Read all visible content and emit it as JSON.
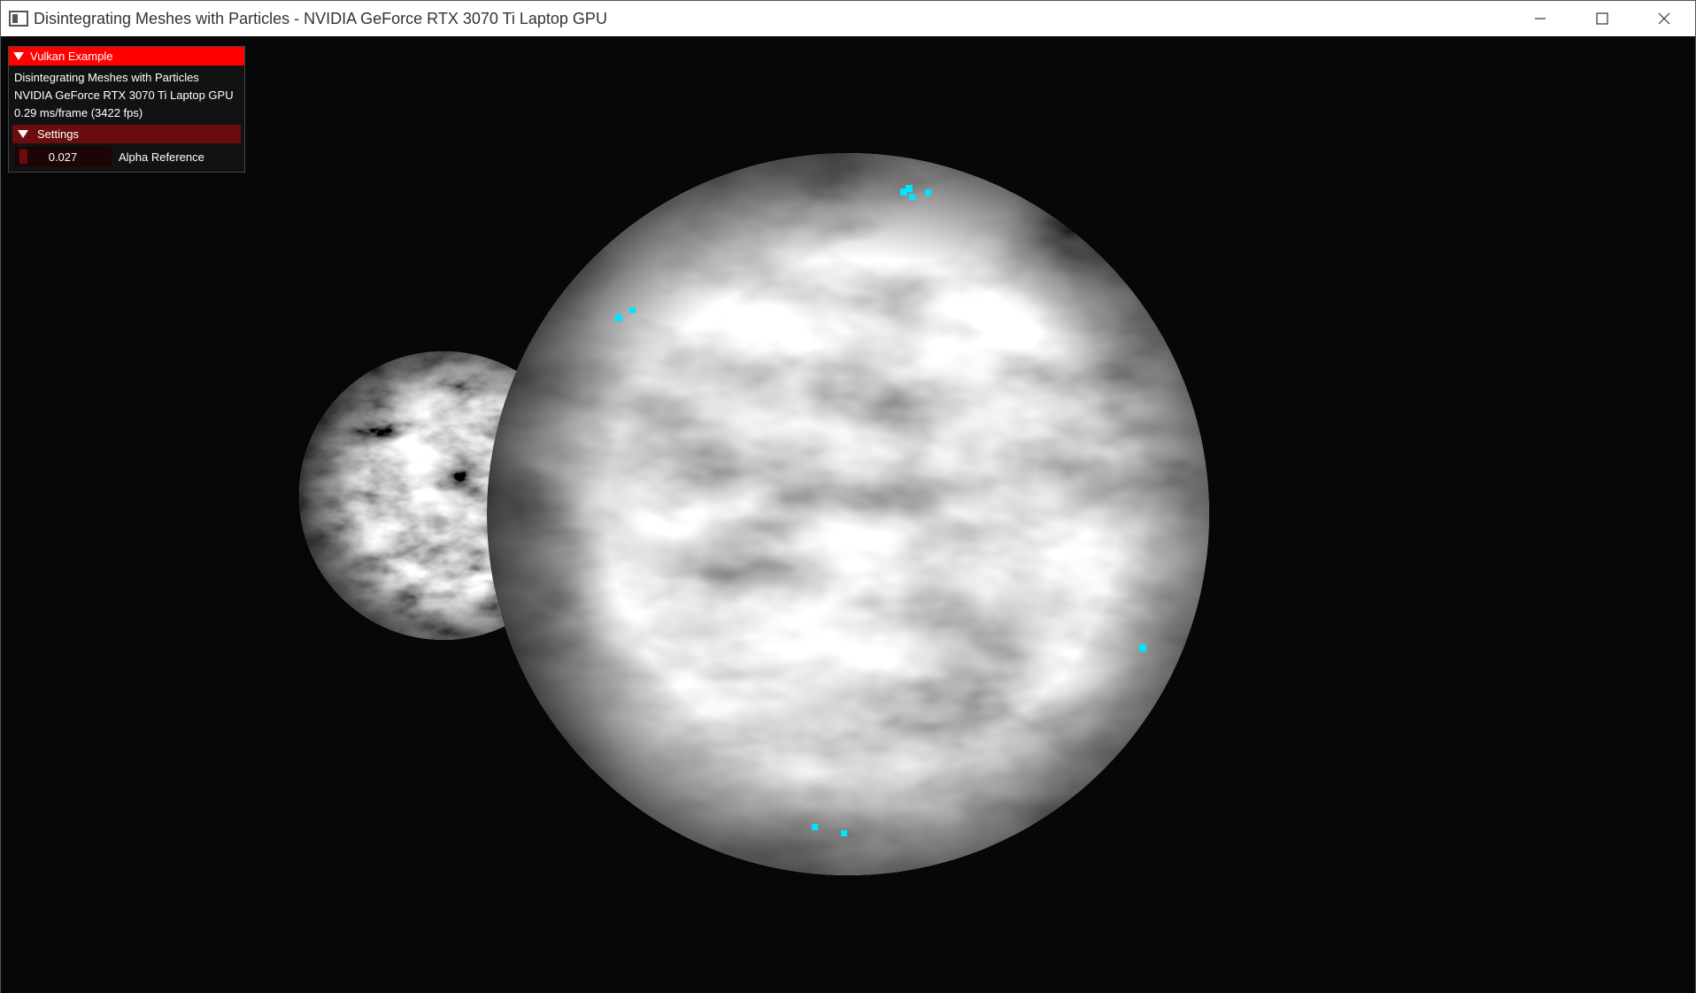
{
  "window": {
    "title": "Disintegrating Meshes with Particles - NVIDIA GeForce RTX 3070 Ti Laptop GPU",
    "icon": "app-window-icon",
    "controls": [
      "minimize-icon",
      "maximize-icon",
      "close-icon"
    ]
  },
  "overlay": {
    "header": "Vulkan Example",
    "lines": [
      "Disintegrating Meshes with Particles",
      "NVIDIA GeForce RTX 3070 Ti Laptop GPU",
      "0.29 ms/frame (3422 fps)"
    ],
    "settings": {
      "header": "Settings",
      "alpha_reference": {
        "value": "0.027",
        "label": "Alpha Reference",
        "level": 0.027
      }
    }
  },
  "colors": {
    "header_red": "#ff0000",
    "settings_dark_red": "#6a0d0d",
    "particle_cyan": "#00e5ff",
    "background": "#070707"
  }
}
